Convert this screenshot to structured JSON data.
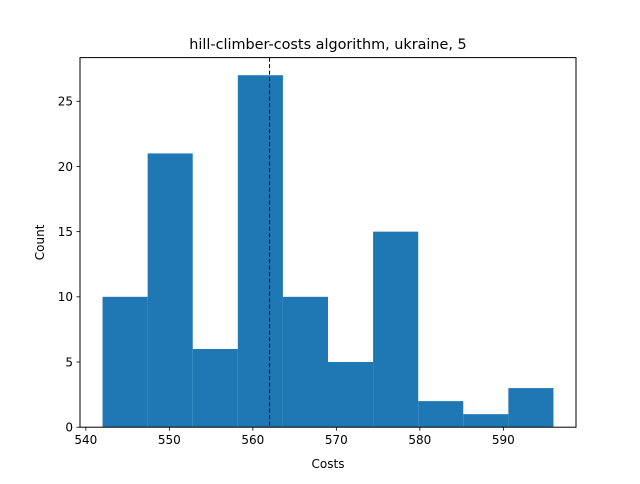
{
  "chart_data": {
    "type": "bar",
    "title": "hill-climber-costs algorithm, ukraine, 5",
    "xlabel": "Costs",
    "ylabel": "Count",
    "bin_edges": [
      542,
      547.4,
      552.8,
      558.2,
      563.6,
      569,
      574.4,
      579.8,
      585.2,
      590.6,
      596
    ],
    "values": [
      10,
      21,
      6,
      27,
      10,
      5,
      15,
      2,
      1,
      3
    ],
    "xlim": [
      539.3,
      598.7
    ],
    "ylim": [
      0,
      28.35
    ],
    "xticks": [
      540,
      550,
      560,
      570,
      580,
      590
    ],
    "yticks": [
      0,
      5,
      10,
      15,
      20,
      25
    ],
    "mean_line": 562,
    "bar_color": "#1f77b4",
    "line_color": "#000000",
    "grid": false,
    "legend": "none"
  }
}
